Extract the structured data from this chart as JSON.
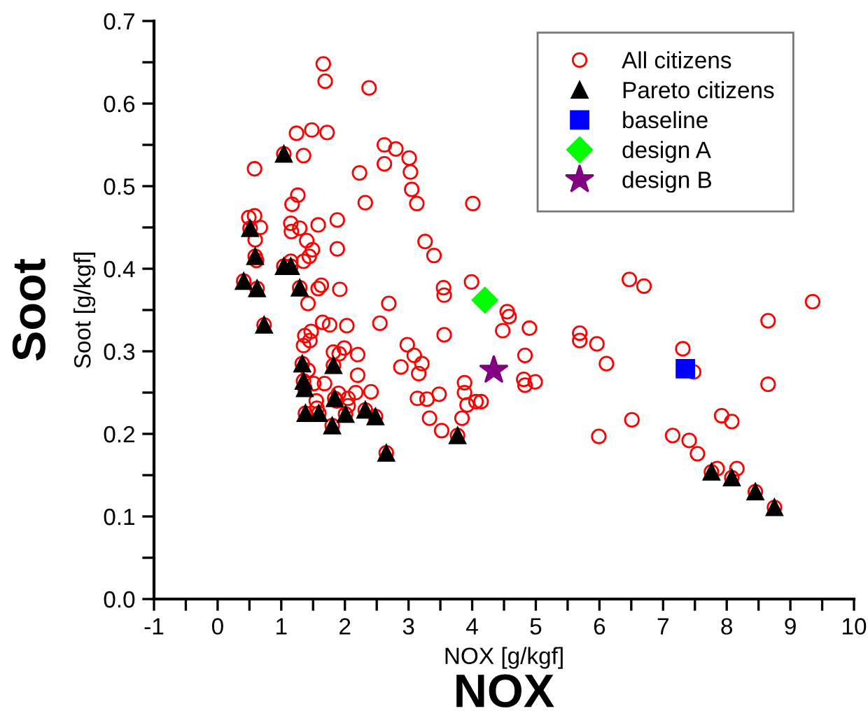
{
  "chart_data": {
    "type": "scatter",
    "xlabel": "NOX [g/kgf]",
    "ylabel": "Soot [g/kgf]",
    "annotations": [
      "Soot",
      "NOX"
    ],
    "xlim": [
      -1,
      10
    ],
    "ylim": [
      0,
      0.7
    ],
    "xticks": [
      -1,
      {
        "value": -0.5,
        "label": null
      },
      0,
      {
        "value": 0.5,
        "label": null
      },
      1,
      {
        "value": 1.5,
        "label": null
      },
      2,
      {
        "value": 2.5,
        "label": null
      },
      3,
      {
        "value": 3.5,
        "label": null
      },
      4,
      {
        "value": 4.5,
        "label": null
      },
      5,
      {
        "value": 5.5,
        "label": null
      },
      6,
      {
        "value": 6.5,
        "label": null
      },
      7,
      {
        "value": 7.5,
        "label": null
      },
      8,
      {
        "value": 8.5,
        "label": null
      },
      9,
      {
        "value": 9.5,
        "label": null
      },
      10
    ],
    "yticks": [
      {
        "value": 0,
        "label": "0.0"
      },
      {
        "value": 0.05,
        "label": null
      },
      0.1,
      {
        "value": 0.15,
        "label": null
      },
      0.2,
      {
        "value": 0.25,
        "label": null
      },
      0.3,
      {
        "value": 0.35,
        "label": null
      },
      0.4,
      {
        "value": 0.45,
        "label": null
      },
      0.5,
      {
        "value": 0.55,
        "label": null
      },
      0.6,
      {
        "value": 0.65,
        "label": null
      },
      0.7
    ],
    "grid": false,
    "legend": "top right",
    "series": [
      {
        "name": "All citizens",
        "color": "#ff0000",
        "marker": "circle",
        "x": [
          1.66,
          1.69,
          2.38,
          1.24,
          1.48,
          1.72,
          1.35,
          0.58,
          2.62,
          2.8,
          2.62,
          2.23,
          3.01,
          3.03,
          3.05,
          3.13,
          2.32,
          1.26,
          1.17,
          4.01,
          0.49,
          0.58,
          0.67,
          0.59,
          1.15,
          1.16,
          1.29,
          1.58,
          1.88,
          1.88,
          1.4,
          1.49,
          1.44,
          1.35,
          1.15,
          3.26,
          3.4,
          3.55,
          3.56,
          3.99,
          1.58,
          1.63,
          1.92,
          1.42,
          2.69,
          1.65,
          1.76,
          2.03,
          2.55,
          1.47,
          1.37,
          1.45,
          1.35,
          3.56,
          2.98,
          1.99,
          1.82,
          1.91,
          2.2,
          3.09,
          3.21,
          2.88,
          3.16,
          1.42,
          1.51,
          1.68,
          2.2,
          3.88,
          3.88,
          2.41,
          2.17,
          1.9,
          3.48,
          2.05,
          1.55,
          3.14,
          3.29,
          4.06,
          3.92,
          1.56,
          2.05,
          3.33,
          3.84,
          3.52,
          6.47,
          6.7,
          9.35,
          4.55,
          4.58,
          4.48,
          4.9,
          5.69,
          5.69,
          5.96,
          6.11,
          4.83,
          8.65,
          7.31,
          7.48,
          8.65,
          4.81,
          4.83,
          4.99,
          6.51,
          5.99,
          7.15,
          7.41,
          7.54,
          7.92,
          8.08,
          7.85,
          8.16,
          4.14,
          1.04,
          0.51,
          0.59,
          0.61,
          1.04,
          1.15,
          0.41,
          0.62,
          1.29,
          0.73,
          1.33,
          1.35,
          1.37,
          1.82,
          1.84,
          1.87,
          1.38,
          1.59,
          1.8,
          2.01,
          2.32,
          2.48,
          2.65,
          3.77,
          7.76,
          8.08,
          8.45,
          8.75
        ],
        "values": [
          0.648,
          0.627,
          0.619,
          0.564,
          0.568,
          0.565,
          0.537,
          0.521,
          0.55,
          0.545,
          0.527,
          0.516,
          0.534,
          0.517,
          0.496,
          0.479,
          0.48,
          0.489,
          0.478,
          0.479,
          0.462,
          0.464,
          0.45,
          0.435,
          0.455,
          0.445,
          0.449,
          0.453,
          0.459,
          0.424,
          0.434,
          0.423,
          0.415,
          0.409,
          0.409,
          0.433,
          0.416,
          0.377,
          0.368,
          0.384,
          0.376,
          0.38,
          0.375,
          0.358,
          0.358,
          0.335,
          0.332,
          0.331,
          0.334,
          0.324,
          0.319,
          0.313,
          0.307,
          0.32,
          0.308,
          0.304,
          0.299,
          0.297,
          0.296,
          0.295,
          0.285,
          0.281,
          0.273,
          0.277,
          0.261,
          0.261,
          0.271,
          0.262,
          0.25,
          0.251,
          0.25,
          0.249,
          0.248,
          0.243,
          0.24,
          0.243,
          0.242,
          0.239,
          0.235,
          0.231,
          0.234,
          0.219,
          0.219,
          0.204,
          0.387,
          0.379,
          0.36,
          0.348,
          0.342,
          0.325,
          0.328,
          0.322,
          0.313,
          0.309,
          0.285,
          0.295,
          0.337,
          0.303,
          0.275,
          0.26,
          0.266,
          0.259,
          0.263,
          0.217,
          0.197,
          0.198,
          0.192,
          0.176,
          0.222,
          0.215,
          0.158,
          0.158,
          0.239,
          0.539,
          0.449,
          0.415,
          0.41,
          0.403,
          0.403,
          0.385,
          0.376,
          0.377,
          0.332,
          0.285,
          0.264,
          0.255,
          0.283,
          0.243,
          0.24,
          0.225,
          0.225,
          0.21,
          0.224,
          0.229,
          0.221,
          0.177,
          0.198,
          0.154,
          0.147,
          0.13,
          0.111
        ]
      },
      {
        "name": "Pareto citizens",
        "color": "#000000",
        "marker": "triangle",
        "x": [
          1.04,
          0.51,
          0.59,
          1.04,
          1.15,
          0.41,
          0.62,
          1.29,
          0.73,
          1.33,
          1.35,
          1.37,
          1.82,
          1.84,
          1.38,
          1.59,
          1.8,
          2.01,
          2.32,
          2.48,
          2.65,
          3.77,
          7.76,
          8.08,
          8.45,
          8.75
        ],
        "values": [
          0.539,
          0.449,
          0.415,
          0.403,
          0.403,
          0.385,
          0.376,
          0.377,
          0.332,
          0.285,
          0.264,
          0.255,
          0.283,
          0.243,
          0.225,
          0.225,
          0.21,
          0.224,
          0.229,
          0.221,
          0.177,
          0.198,
          0.154,
          0.147,
          0.13,
          0.111
        ]
      },
      {
        "name": "baseline",
        "color": "#0000ff",
        "marker": "square",
        "x": [
          7.35
        ],
        "values": [
          0.279
        ]
      },
      {
        "name": "design A",
        "color": "#00ff00",
        "marker": "diamond",
        "x": [
          4.2
        ],
        "values": [
          0.362
        ]
      },
      {
        "name": "design B",
        "color": "#800080",
        "marker": "star",
        "x": [
          4.34
        ],
        "values": [
          0.277
        ]
      }
    ]
  }
}
